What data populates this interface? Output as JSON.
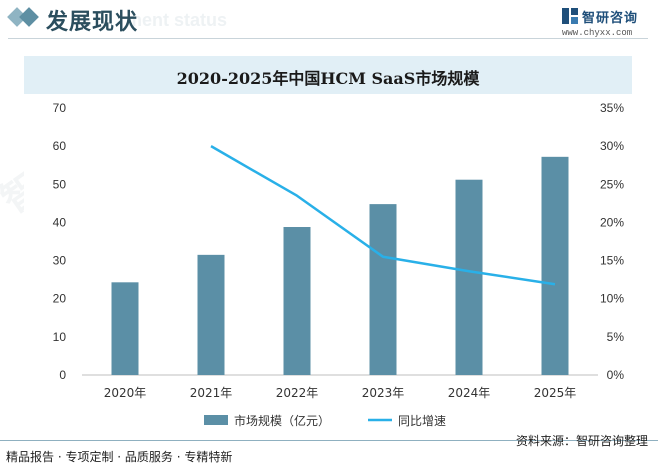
{
  "header": {
    "title": "发展现状",
    "subtitle_en": "ment status",
    "logo_name": "智研咨询",
    "logo_url": "www.chyxx.com"
  },
  "chart_data": {
    "type": "bar+line",
    "title": "2020-2025年中国HCM SaaS市场规模",
    "categories": [
      "2020年",
      "2021年",
      "2022年",
      "2023年",
      "2024年",
      "2025年"
    ],
    "series": [
      {
        "name": "市场规模（亿元）",
        "type": "bar",
        "axis": "left",
        "color": "#5b8fa6",
        "values": [
          24.3,
          31.5,
          38.8,
          44.8,
          51.2,
          57.2
        ]
      },
      {
        "name": "同比增速",
        "type": "line",
        "axis": "right",
        "color": "#29b0e8",
        "values": [
          null,
          0.3,
          0.235,
          0.155,
          0.136,
          0.119
        ]
      }
    ],
    "y_left": {
      "min": 0,
      "max": 70,
      "ticks": [
        "0",
        "10",
        "20",
        "30",
        "40",
        "50",
        "60",
        "70"
      ]
    },
    "y_right": {
      "min": 0,
      "max": 0.35,
      "ticks": [
        "0%",
        "5%",
        "10%",
        "15%",
        "20%",
        "25%",
        "30%",
        "35%"
      ]
    },
    "grid": false,
    "legend_position": "bottom"
  },
  "footer": {
    "left": "精品报告 · 专项定制 · 品质服务 · 专精特新",
    "right": "资料来源：智研咨询整理"
  },
  "watermark_text": "智研咨询"
}
